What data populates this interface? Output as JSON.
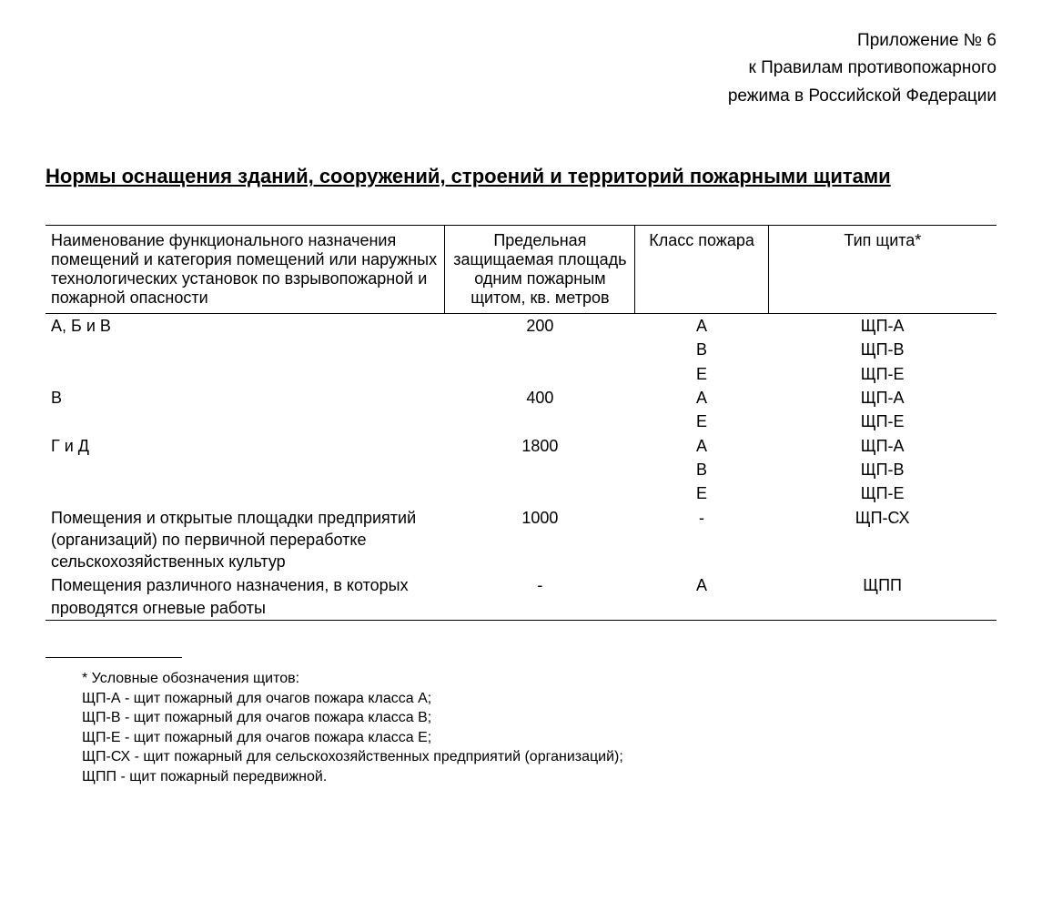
{
  "header": {
    "line1": "Приложение № 6",
    "line2": "к Правилам противопожарного",
    "line3": "режима в Российской Федерации"
  },
  "title": "Нормы оснащения зданий, сооружений, строений и территорий пожарными щитами",
  "table": {
    "columns": [
      "Наименование функционального назначения помещений и категория помещений или наружных технологических установок по взрывопожарной и пожарной опасности",
      "Предельная защищаемая площадь одним пожарным щитом, кв. метров",
      "Класс пожара",
      "Тип щита*"
    ],
    "rows": [
      {
        "name": "А, Б и В",
        "area": "200",
        "class": "А",
        "type": "ЩП-А"
      },
      {
        "name": "",
        "area": "",
        "class": "В",
        "type": "ЩП-В"
      },
      {
        "name": "",
        "area": "",
        "class": "Е",
        "type": "ЩП-Е"
      },
      {
        "name": "В",
        "area": "400",
        "class": "А",
        "type": "ЩП-А"
      },
      {
        "name": "",
        "area": "",
        "class": "Е",
        "type": "ЩП-Е"
      },
      {
        "name": "Г и Д",
        "area": "1800",
        "class": "А",
        "type": "ЩП-А"
      },
      {
        "name": "",
        "area": "",
        "class": "В",
        "type": "ЩП-В"
      },
      {
        "name": "",
        "area": "",
        "class": "Е",
        "type": "ЩП-Е"
      },
      {
        "name": "Помещения и открытые площадки предприятий (организаций) по первичной переработке сельскохозяйственных культур",
        "area": "1000",
        "class": "-",
        "type": "ЩП-СХ"
      },
      {
        "name": "Помещения различного назначения, в которых проводятся огневые работы",
        "area": "-",
        "class": "А",
        "type": "ЩПП"
      }
    ]
  },
  "footnotes": {
    "intro": "* Условные обозначения щитов:",
    "items": [
      "ЩП-А - щит пожарный для очагов пожара класса А;",
      "ЩП-В - щит пожарный для очагов пожара класса В;",
      "ЩП-Е - щит пожарный для очагов пожара класса Е;",
      "ЩП-СХ - щит пожарный для сельскохозяйственных предприятий (организаций);",
      "ЩПП - щит пожарный передвижной."
    ]
  }
}
